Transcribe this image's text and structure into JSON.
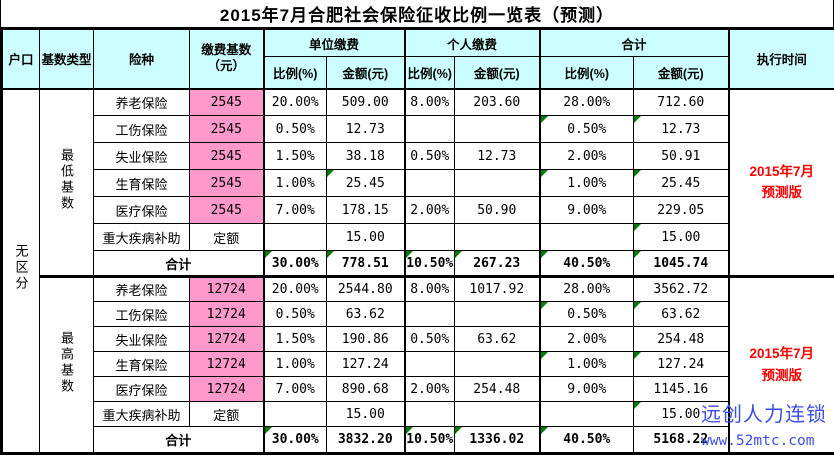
{
  "title": "2015年7月合肥社会保险征收比例一览表（预测）",
  "header": {
    "hukou": "户口",
    "base_type": "基数类型",
    "insurance_type": "险种",
    "payment_base": "缴费基数\n（元）",
    "unit_group": "单位缴费",
    "personal_group": "个人缴费",
    "total_group": "合计",
    "ratio": "比例(%)",
    "amount": "金额(元)",
    "exec_time": "执行时间"
  },
  "hukou_value": "无区分",
  "blocks": [
    {
      "base_type": "最低基数",
      "exec_time": "2015年7月\n预测版",
      "rows": [
        {
          "name": "养老保险",
          "base": "2545",
          "pink": true,
          "ur": "20.00%",
          "ua": "509.00",
          "pr": "8.00%",
          "pa": "203.60",
          "tr": "28.00%",
          "ta": "712.60",
          "marks": []
        },
        {
          "name": "工伤保险",
          "base": "2545",
          "pink": true,
          "ur": "0.50%",
          "ua": "12.73",
          "pr": "",
          "pa": "",
          "tr": "0.50%",
          "ta": "12.73",
          "marks": [
            "tr",
            "ta"
          ]
        },
        {
          "name": "失业保险",
          "base": "2545",
          "pink": true,
          "ur": "1.50%",
          "ua": "38.18",
          "pr": "0.50%",
          "pa": "12.73",
          "tr": "2.00%",
          "ta": "50.91",
          "marks": []
        },
        {
          "name": "生育保险",
          "base": "2545",
          "pink": true,
          "ur": "1.00%",
          "ua": "25.45",
          "pr": "",
          "pa": "",
          "tr": "1.00%",
          "ta": "25.45",
          "marks": [
            "ua",
            "tr",
            "ta"
          ]
        },
        {
          "name": "医疗保险",
          "base": "2545",
          "pink": true,
          "ur": "7.00%",
          "ua": "178.15",
          "pr": "2.00%",
          "pa": "50.90",
          "tr": "9.00%",
          "ta": "229.05",
          "marks": []
        },
        {
          "name": "重大疾病补助",
          "base": "定额",
          "pink": false,
          "ur": "",
          "ua": "15.00",
          "pr": "",
          "pa": "",
          "tr": "",
          "ta": "15.00",
          "marks": [
            "ta"
          ]
        }
      ],
      "total": {
        "label": "合计",
        "ur": "30.00%",
        "ua": "778.51",
        "pr": "10.50%",
        "pa": "267.23",
        "tr": "40.50%",
        "ta": "1045.74",
        "marks": [
          "ur",
          "ua",
          "pr",
          "pa",
          "tr",
          "ta"
        ]
      }
    },
    {
      "base_type": "最高基数",
      "exec_time": "2015年7月\n预测版",
      "rows": [
        {
          "name": "养老保险",
          "base": "12724",
          "pink": true,
          "ur": "20.00%",
          "ua": "2544.80",
          "pr": "8.00%",
          "pa": "1017.92",
          "tr": "28.00%",
          "ta": "3562.72",
          "marks": []
        },
        {
          "name": "工伤保险",
          "base": "12724",
          "pink": true,
          "ur": "0.50%",
          "ua": "63.62",
          "pr": "",
          "pa": "",
          "tr": "0.50%",
          "ta": "63.62",
          "marks": [
            "tr",
            "ta"
          ]
        },
        {
          "name": "失业保险",
          "base": "12724",
          "pink": true,
          "ur": "1.50%",
          "ua": "190.86",
          "pr": "0.50%",
          "pa": "63.62",
          "tr": "2.00%",
          "ta": "254.48",
          "marks": []
        },
        {
          "name": "生育保险",
          "base": "12724",
          "pink": true,
          "ur": "1.00%",
          "ua": "127.24",
          "pr": "",
          "pa": "",
          "tr": "1.00%",
          "ta": "127.24",
          "marks": [
            "tr",
            "ta"
          ]
        },
        {
          "name": "医疗保险",
          "base": "12724",
          "pink": true,
          "ur": "7.00%",
          "ua": "890.68",
          "pr": "2.00%",
          "pa": "254.48",
          "tr": "9.00%",
          "ta": "1145.16",
          "marks": []
        },
        {
          "name": "重大疾病补助",
          "base": "定额",
          "pink": false,
          "ur": "",
          "ua": "15.00",
          "pr": "",
          "pa": "",
          "tr": "",
          "ta": "15.00",
          "marks": [
            "ta"
          ]
        }
      ],
      "total": {
        "label": "合计",
        "ur": "30.00%",
        "ua": "3832.20",
        "pr": "10.50%",
        "pa": "1336.02",
        "tr": "40.50%",
        "ta": "5168.22",
        "marks": [
          "ur",
          "pr",
          "pa",
          "tr"
        ]
      }
    }
  ],
  "watermark": {
    "brand": "远创人力连锁",
    "url": "www.52mtc.com"
  },
  "colors": {
    "header_bg": "#CCFFFF",
    "base_cell_bg": "#FF99CC",
    "exec_text_red": "#FF0000",
    "watermark_blue": "#3D4EE8",
    "error_flag_green": "#007D00",
    "border_black": "#000000"
  }
}
